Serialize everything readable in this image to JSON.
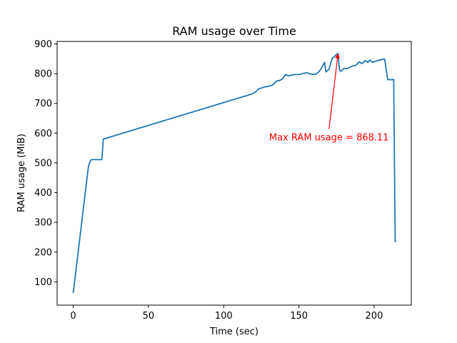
{
  "chart_data": {
    "type": "line",
    "title": "RAM usage over Time",
    "xlabel": "Time (sec)",
    "ylabel": "RAM usage (MiB)",
    "xlim": [
      -10.7,
      224.7
    ],
    "ylim": [
      21.7,
      908.4
    ],
    "xticks": [
      0,
      50,
      100,
      150,
      200
    ],
    "yticks": [
      100,
      200,
      300,
      400,
      500,
      600,
      700,
      800,
      900
    ],
    "grid": false,
    "legend": "none",
    "colors": {
      "line": "#1f77b4",
      "annotation": "#ff0000"
    },
    "series": [
      {
        "x": [
          0,
          10,
          11,
          12,
          19,
          20,
          119,
          121,
          123,
          125,
          127,
          129,
          131,
          133,
          135,
          137,
          139,
          141,
          143,
          145,
          147,
          149,
          151,
          153,
          155,
          157,
          159,
          161,
          163,
          165,
          167,
          168,
          170,
          172,
          174,
          176,
          177,
          178,
          180,
          182,
          184,
          186,
          188,
          190,
          192,
          194,
          196,
          197,
          199,
          201,
          203,
          205,
          207,
          209,
          211,
          212,
          213,
          214
        ],
        "y": [
          62,
          484,
          503,
          511,
          511,
          580,
          732,
          738,
          748,
          752,
          755,
          757,
          759,
          764,
          775,
          777,
          782,
          797,
          793,
          795,
          797,
          797,
          798,
          801,
          803,
          800,
          798,
          798,
          805,
          818,
          838,
          806,
          815,
          850,
          860,
          868,
          812,
          808,
          818,
          817,
          822,
          826,
          828,
          840,
          834,
          844,
          838,
          846,
          838,
          842,
          845,
          848,
          849,
          780,
          780,
          780,
          781,
          233
        ]
      }
    ],
    "annotation": {
      "text": "Max RAM usage = 868.11",
      "point": [
        176,
        868.11
      ],
      "text_anchor": [
        170,
        575
      ]
    }
  }
}
